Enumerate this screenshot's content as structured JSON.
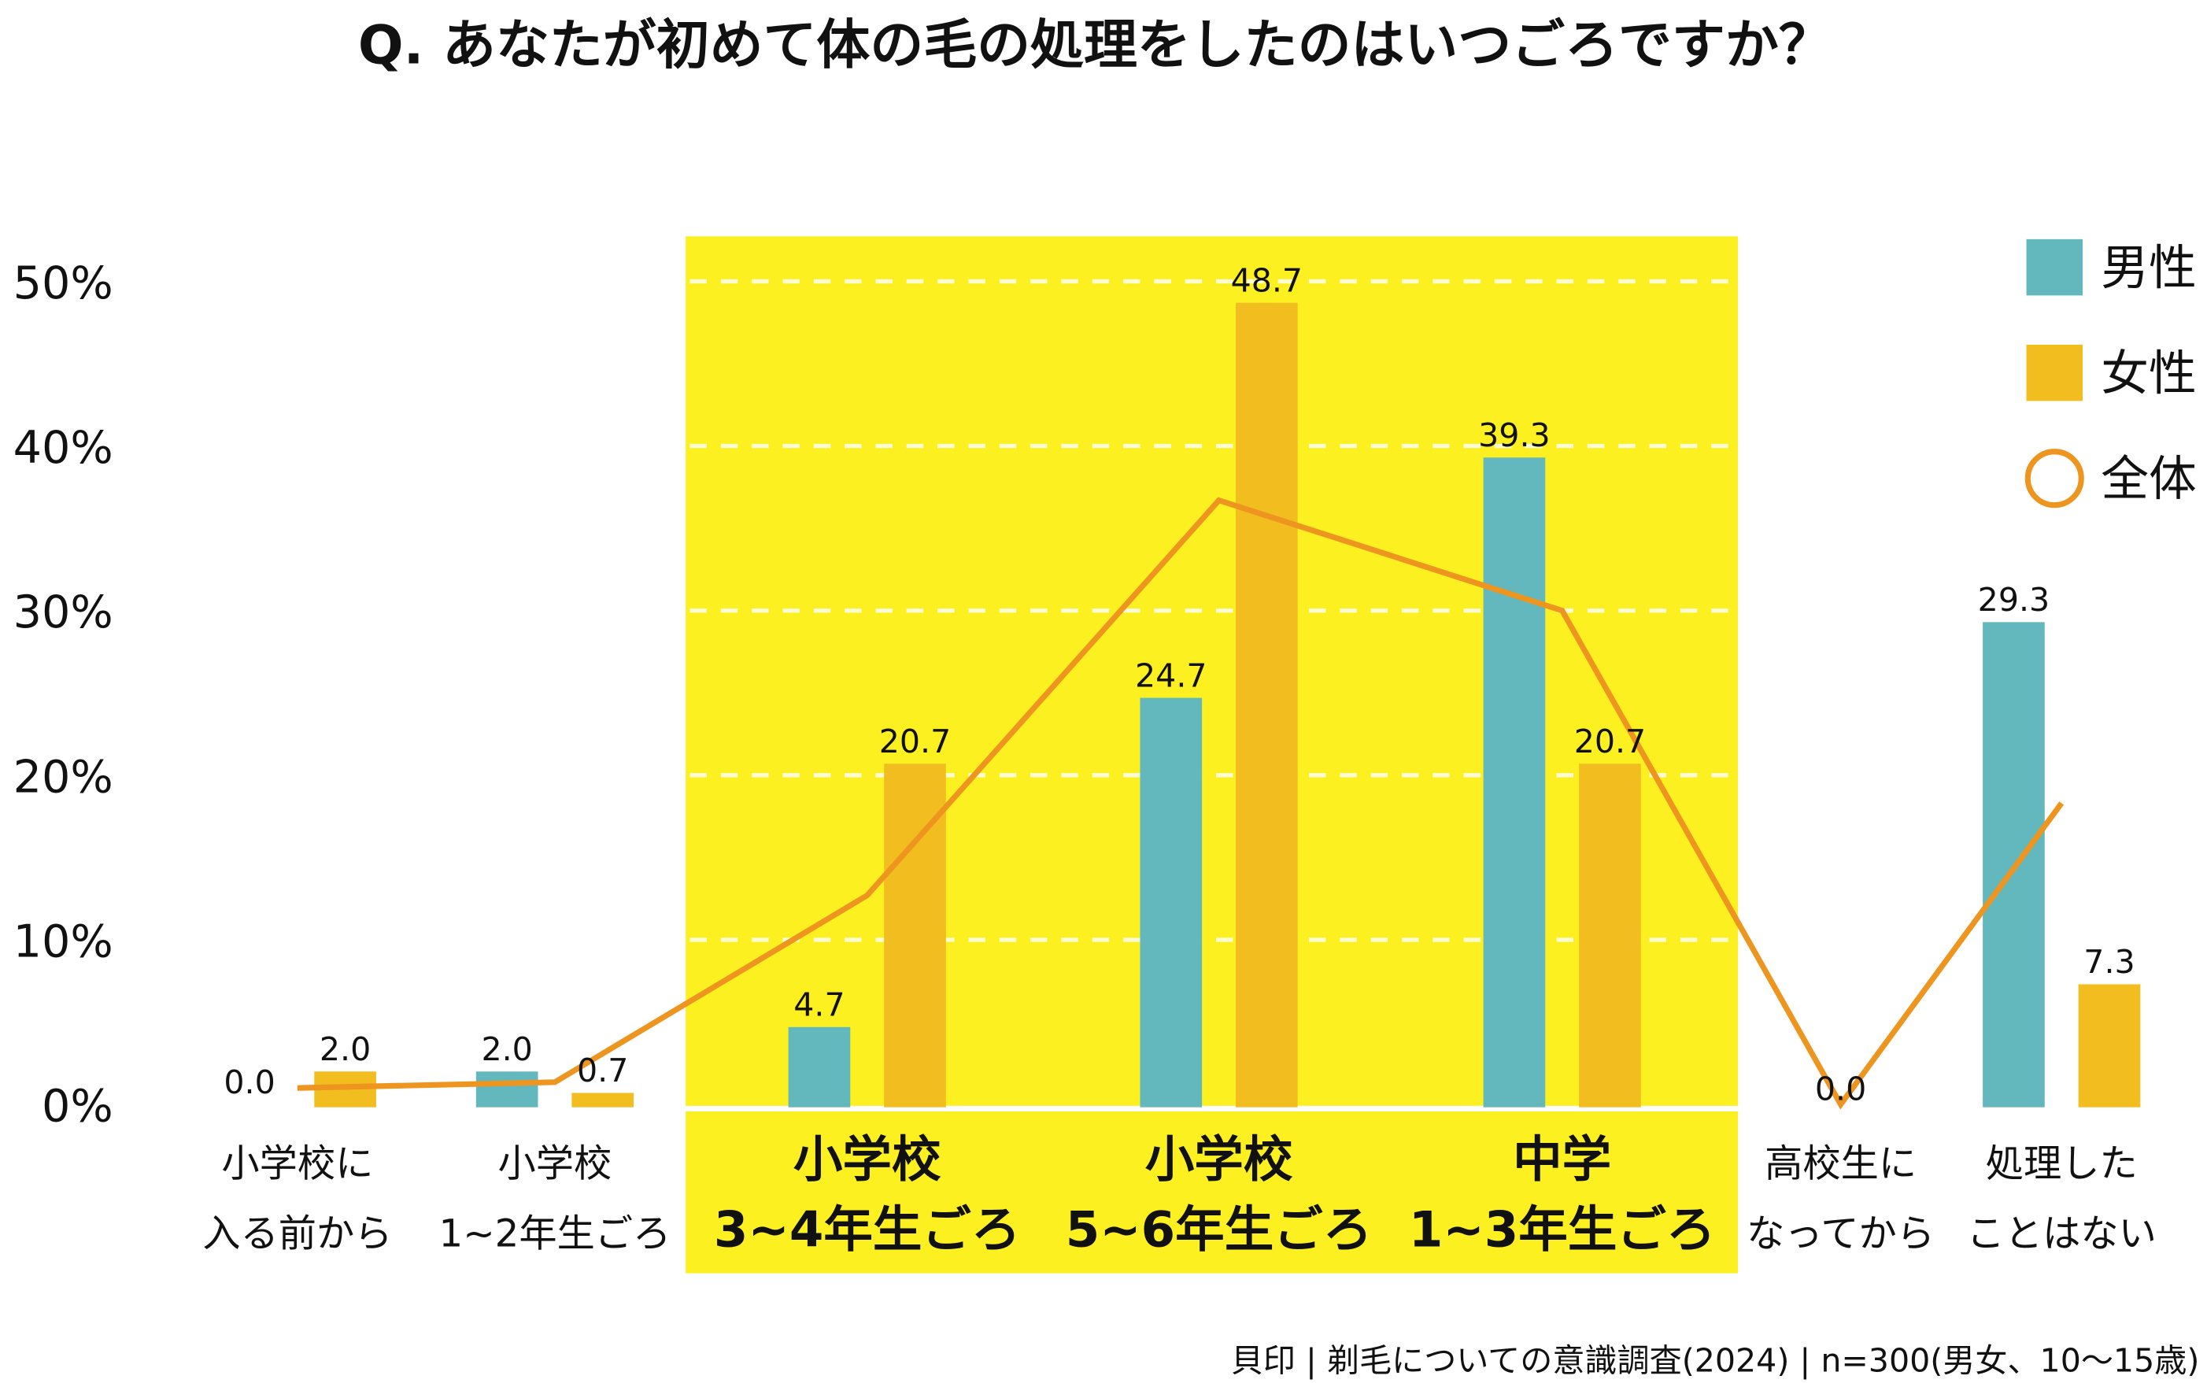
{
  "chart_data": {
    "type": "bar",
    "title": "Q. あなたが初めて体の毛の処理をしたのはいつごろですか？",
    "source": "貝印 | 剃毛についての意識調査(2024) | n=300(男女、10～15歳)",
    "categories": [
      [
        "小学校に",
        "入る前から"
      ],
      [
        "小学校",
        "1~2年生ごろ"
      ],
      [
        "小学校",
        "3~4年生ごろ"
      ],
      [
        "小学校",
        "5~6年生ごろ"
      ],
      [
        "中学",
        "1~3年生ごろ"
      ],
      [
        "高校生に",
        "なってから"
      ],
      [
        "処理した",
        "ことはない"
      ]
    ],
    "highlighted_categories": [
      2,
      3,
      4
    ],
    "series": [
      {
        "name": "男性",
        "type": "bar",
        "color": "#63B8BD",
        "values": [
          0.0,
          2.0,
          4.7,
          24.7,
          39.3,
          0.0,
          29.3
        ]
      },
      {
        "name": "女性",
        "type": "bar",
        "color": "#F2BD1F",
        "values": [
          2.0,
          0.7,
          20.7,
          48.7,
          20.7,
          0.0,
          7.3
        ]
      },
      {
        "name": "全体",
        "type": "line",
        "color": "#EE9520",
        "values": [
          1.0,
          1.35,
          12.7,
          36.7,
          30.0,
          0.0,
          18.3
        ]
      }
    ],
    "data_labels": [
      [
        "0.0",
        "2.0"
      ],
      [
        "2.0",
        "0.7"
      ],
      [
        "4.7",
        "20.7"
      ],
      [
        "24.7",
        "48.7"
      ],
      [
        "39.3",
        "20.7"
      ],
      [
        "0.0"
      ],
      [
        "29.3",
        "7.3"
      ]
    ],
    "yticks": [
      "0%",
      "10%",
      "20%",
      "30%",
      "40%",
      "50%"
    ],
    "ylim": [
      0,
      50
    ],
    "grid": "dashed white lines in highlighted area",
    "highlight_color": "#FDF021",
    "legend": "top-right"
  }
}
